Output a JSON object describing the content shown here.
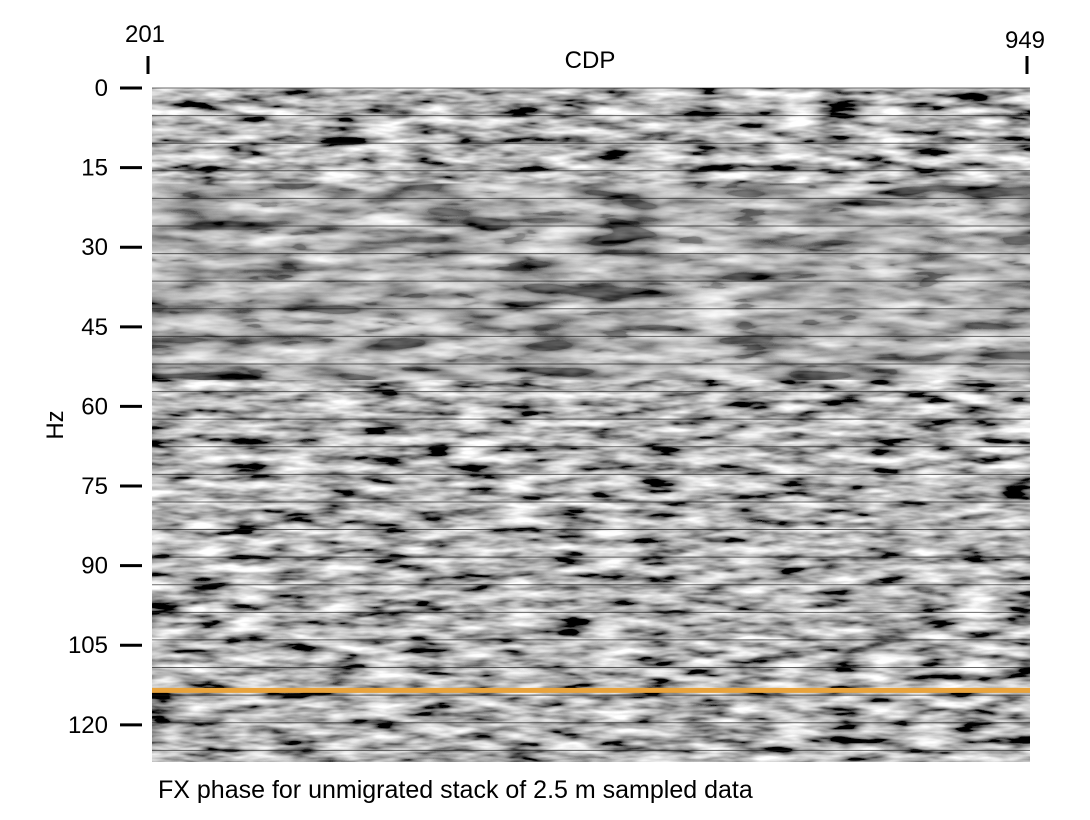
{
  "chart_data": {
    "type": "heatmap",
    "title": "",
    "xlabel": "CDP",
    "ylabel": "Hz",
    "x_range": [
      201,
      949
    ],
    "x_ticks": [
      "201",
      "949"
    ],
    "y_range": [
      0,
      127
    ],
    "y_ticks": [
      0,
      15,
      30,
      45,
      60,
      75,
      90,
      105,
      120
    ],
    "y_inverted": true,
    "colormap": "grayscale",
    "highlight_line": {
      "y": 113.5,
      "color": "#E8A33C"
    },
    "caption": "FX phase for unmigrated stack of 2.5 m sampled data"
  }
}
